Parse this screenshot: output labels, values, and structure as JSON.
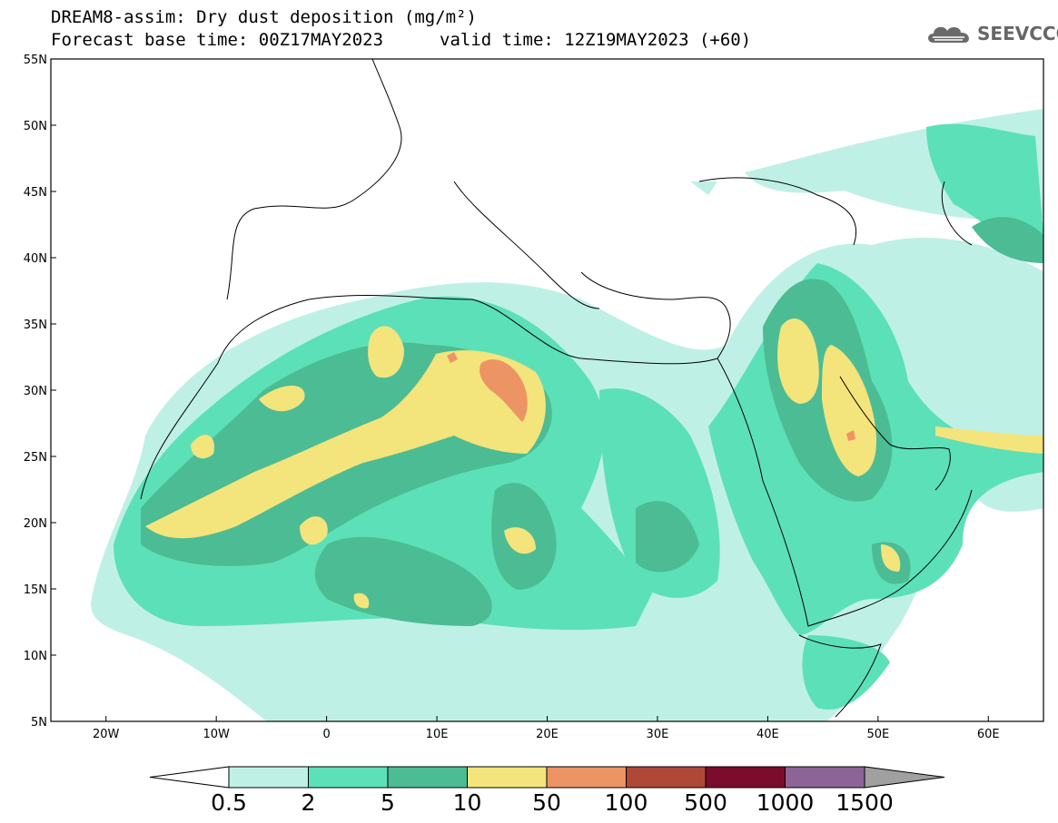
{
  "header": {
    "title": "DREAM8-assim: Dry dust deposition (mg/m²)",
    "base_time": "Forecast base time: 00Z17MAY2023",
    "valid_time": "valid time: 12Z19MAY2023 (+60)"
  },
  "logo": {
    "text": "SEEVCCC",
    "icon": "cloud-icon",
    "color": "#666666"
  },
  "map": {
    "lat_ticks": [
      "55N",
      "50N",
      "45N",
      "40N",
      "35N",
      "30N",
      "25N",
      "20N",
      "15N",
      "10N",
      "5N"
    ],
    "lat_values": [
      55,
      50,
      45,
      40,
      35,
      30,
      25,
      20,
      15,
      10,
      5
    ],
    "lon_ticks": [
      "20W",
      "10W",
      "0",
      "10E",
      "20E",
      "30E",
      "40E",
      "50E",
      "60E"
    ],
    "lon_values": [
      -20,
      -10,
      0,
      10,
      20,
      30,
      40,
      50,
      60
    ],
    "extent": {
      "lon": [
        -25,
        65
      ],
      "lat": [
        5,
        55
      ]
    }
  },
  "colorbar": {
    "labels": [
      "0.5",
      "2",
      "5",
      "10",
      "50",
      "100",
      "500",
      "1000",
      "1500"
    ],
    "colors": [
      "#bff0e6",
      "#5ce0b8",
      "#4cbc94",
      "#f4e47c",
      "#ec9464",
      "#b04838",
      "#7c0c2c",
      "#8c6498"
    ],
    "under_color": "#ffffff",
    "over_color": "#a0a0a0"
  }
}
